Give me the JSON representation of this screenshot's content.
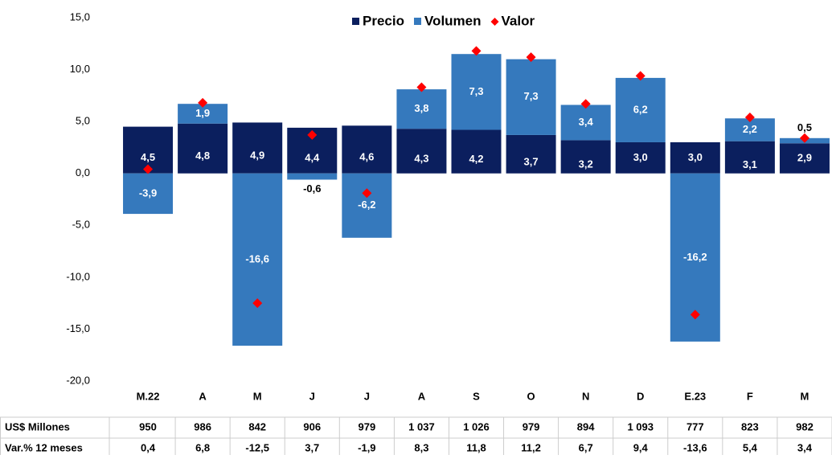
{
  "chart_data": {
    "type": "bar",
    "categories": [
      "M.22",
      "A",
      "M",
      "J",
      "J",
      "A",
      "S",
      "O",
      "N",
      "D",
      "E.23",
      "F",
      "M"
    ],
    "series": [
      {
        "name": "Precio",
        "color": "#0b1f5e",
        "values": [
          4.5,
          4.8,
          4.9,
          4.4,
          4.6,
          4.3,
          4.2,
          3.7,
          3.2,
          3.0,
          3.0,
          3.1,
          2.9
        ],
        "value_labels": [
          "4,5",
          "4,8",
          "4,9",
          "4,4",
          "4,6",
          "4,3",
          "4,2",
          "3,7",
          "3,2",
          "3,0",
          "3,0",
          "3,1",
          "2,9"
        ]
      },
      {
        "name": "Volumen",
        "color": "#3579bd",
        "values": [
          -3.9,
          1.9,
          -16.6,
          -0.6,
          -6.2,
          3.8,
          7.3,
          7.3,
          3.4,
          6.2,
          -16.2,
          2.2,
          0.5
        ],
        "value_labels": [
          "-3,9",
          "1,9",
          "-16,6",
          "-0,6",
          "-6,2",
          "3,8",
          "7,3",
          "7,3",
          "3,4",
          "6,2",
          "-16,2",
          "2,2",
          "0,5"
        ]
      },
      {
        "name": "Valor",
        "color": "#ff0000",
        "marker": "diamond",
        "values": [
          0.4,
          6.8,
          -12.5,
          3.7,
          -1.9,
          8.3,
          11.8,
          11.2,
          6.7,
          9.4,
          -13.6,
          5.4,
          3.4
        ]
      }
    ],
    "ylim": [
      -20,
      15
    ],
    "yticks": [
      {
        "value": -20,
        "label": "-20,0"
      },
      {
        "value": -15,
        "label": "-15,0"
      },
      {
        "value": -10,
        "label": "-10,0"
      },
      {
        "value": -5,
        "label": "-5,0"
      },
      {
        "value": 0,
        "label": "0,0"
      },
      {
        "value": 5,
        "label": "5,0"
      },
      {
        "value": 10,
        "label": "10,0"
      },
      {
        "value": 15,
        "label": "15,0"
      }
    ],
    "legend": "top",
    "table": {
      "rows": [
        {
          "label": "US$ Millones",
          "cells": [
            "950",
            "986",
            "842",
            "906",
            "979",
            "1 037",
            "1 026",
            "979",
            "894",
            "1 093",
            "777",
            "823",
            "982"
          ]
        },
        {
          "label": "Var.% 12 meses",
          "cells": [
            "0,4",
            "6,8",
            "-12,5",
            "3,7",
            "-1,9",
            "8,3",
            "11,8",
            "11,2",
            "6,7",
            "9,4",
            "-13,6",
            "5,4",
            "3,4"
          ]
        }
      ]
    }
  }
}
